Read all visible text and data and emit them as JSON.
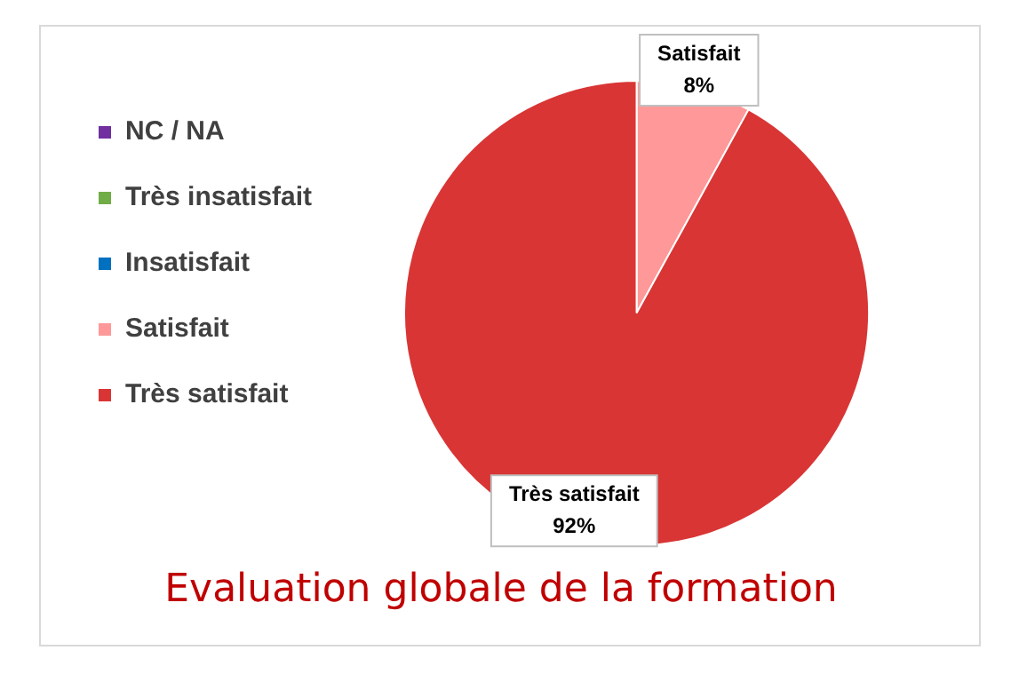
{
  "chart_data": {
    "type": "pie",
    "title": "Evaluation globale de la formation",
    "categories": [
      "NC / NA",
      "Très insatisfait",
      "Insatisfait",
      "Satisfait",
      "Très satisfait"
    ],
    "values": [
      0,
      0,
      0,
      8,
      92
    ],
    "colors": [
      "#7030a0",
      "#70ad47",
      "#0070c0",
      "#ff9999",
      "#d93535"
    ],
    "value_labels": [
      null,
      null,
      null,
      "8%",
      "92%"
    ],
    "legend": "left"
  }
}
